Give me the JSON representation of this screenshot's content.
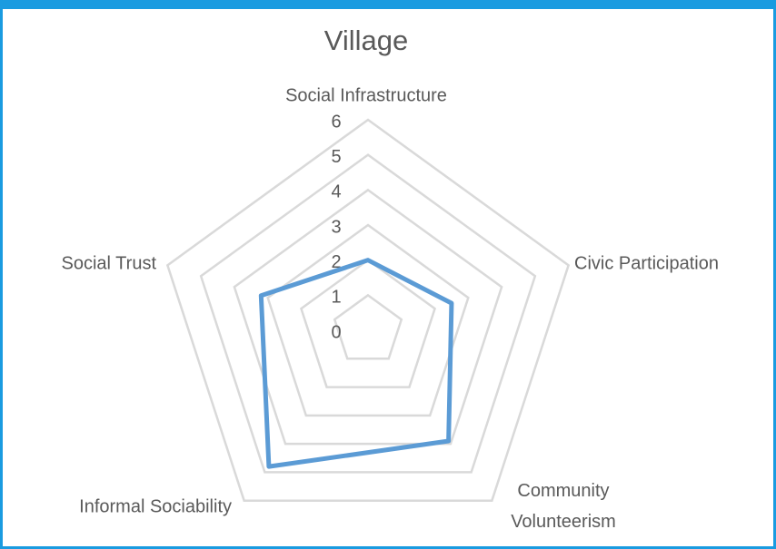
{
  "chart_data": {
    "type": "radar",
    "title": "Village",
    "categories": [
      "Social Infrastructure",
      "Civic Participation",
      "Community Volunteerism",
      "Informal Sociability",
      "Social Trust"
    ],
    "values": [
      2,
      2.5,
      3.9,
      4.8,
      3.2
    ],
    "color": "#5b9bd5",
    "rlim": [
      0,
      6
    ],
    "rticks": [
      0,
      1,
      2,
      3,
      4,
      5,
      6
    ],
    "grid": true
  }
}
